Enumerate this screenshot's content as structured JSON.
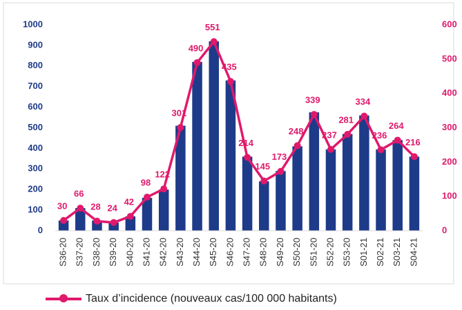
{
  "chart_data": {
    "type": "bar-line",
    "categories": [
      "S36-20",
      "S37-20",
      "S38-20",
      "S39-20",
      "S40-20",
      "S41-20",
      "S42-20",
      "S43-20",
      "S44-20",
      "S45-20",
      "S46-20",
      "S47-20",
      "S48-20",
      "S49-20",
      "S50-20",
      "S51-20",
      "S52-20",
      "S53-20",
      "S01-21",
      "S02-21",
      "S03-21",
      "S04-21"
    ],
    "series": [
      {
        "type": "bar",
        "color": "#1e3b8a",
        "values": [
          50,
          110,
          50,
          40,
          70,
          160,
          200,
          510,
          820,
          920,
          730,
          360,
          240,
          290,
          410,
          575,
          395,
          470,
          560,
          395,
          440,
          360
        ]
      },
      {
        "type": "line",
        "axis": "y2",
        "name": "Taux d’incidence (nouveaux cas/100 000 habitants)",
        "color": "#e0196c",
        "values": [
          30,
          66,
          28,
          24,
          42,
          98,
          122,
          301,
          490,
          551,
          435,
          214,
          145,
          173,
          248,
          339,
          237,
          281,
          334,
          236,
          264,
          216
        ]
      }
    ],
    "ylim": [
      0,
      1000
    ],
    "yticks": [
      0,
      100,
      200,
      300,
      400,
      500,
      600,
      700,
      800,
      900,
      1000
    ],
    "y2lim": [
      0,
      600
    ],
    "y2ticks": [
      0,
      100,
      200,
      300,
      400,
      500,
      600
    ],
    "legend": "bottom"
  }
}
